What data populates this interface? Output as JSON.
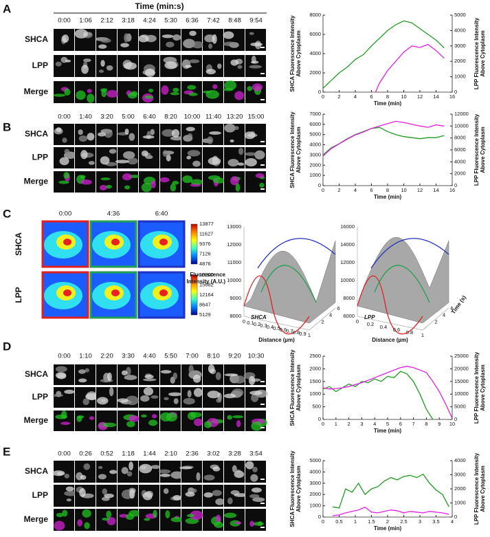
{
  "panels": [
    {
      "label": "A",
      "title": "Time (min:s)",
      "times": [
        "0:00",
        "1:06",
        "2:12",
        "3:18",
        "4:24",
        "5:30",
        "6:36",
        "7:42",
        "8:48",
        "9:54"
      ],
      "rows": [
        "SHCA",
        "LPP",
        "Merge"
      ],
      "chart": {
        "type": "line",
        "xlabel": "Time (min)",
        "ylabel": [
          "SHCA Fluorescence Intensity",
          "Above Cytoplasm"
        ],
        "y2label": [
          "LPP Fluorescence Intensity",
          "Above Cytoplasm"
        ],
        "xlim": [
          0,
          16
        ],
        "xticks": [
          0,
          2,
          4,
          6,
          8,
          10,
          12,
          14,
          16
        ],
        "ylim": [
          0,
          8000
        ],
        "yticks": [
          0,
          2000,
          4000,
          6000,
          8000
        ],
        "y2lim": [
          0,
          5000
        ],
        "y2ticks": [
          0,
          1000,
          2000,
          3000,
          4000,
          5000
        ],
        "series": [
          {
            "color": "#1f9a1f",
            "x": [
              0,
              1,
              2,
              3,
              4,
              5,
              6,
              7,
              8,
              9,
              10,
              11,
              12,
              13,
              14,
              15
            ],
            "values": [
              400,
              1200,
              2000,
              2600,
              3400,
              3900,
              4800,
              5600,
              6400,
              7000,
              7400,
              7200,
              6600,
              6000,
              5400,
              4600
            ]
          },
          {
            "color": "#e020e0",
            "axis": "y2",
            "x": [
              6.5,
              7,
              8,
              9,
              10,
              11,
              12,
              13,
              14,
              15
            ],
            "values": [
              0,
              600,
              1400,
              2000,
              2600,
              3000,
              2900,
              3100,
              2700,
              2200
            ]
          }
        ]
      }
    },
    {
      "label": "B",
      "times": [
        "0:00",
        "1:40",
        "3:20",
        "5:00",
        "6:40",
        "8:20",
        "10:00",
        "11:40",
        "13:20",
        "15:00"
      ],
      "rows": [
        "SHCA",
        "LPP",
        "Merge"
      ],
      "chart": {
        "type": "line",
        "xlabel": "Time (min)",
        "ylabel": [
          "SHCA Fluorescence Intensity",
          "Above Cytoplasm"
        ],
        "y2label": [
          "LPP Fluorescence Intensity",
          "Above Cytoplasm"
        ],
        "xlim": [
          0,
          16
        ],
        "xticks": [
          0,
          2,
          4,
          6,
          8,
          10,
          12,
          14,
          16
        ],
        "ylim": [
          0,
          7000
        ],
        "yticks": [
          0,
          1000,
          2000,
          3000,
          4000,
          5000,
          6000,
          7000
        ],
        "y2lim": [
          0,
          12000
        ],
        "y2ticks": [
          0,
          2000,
          4000,
          6000,
          8000,
          10000,
          12000
        ],
        "series": [
          {
            "color": "#1f9a1f",
            "x": [
              0,
              1,
              2,
              3,
              4,
              5,
              6,
              7,
              8,
              9,
              10,
              11,
              12,
              13,
              14,
              15
            ],
            "values": [
              3000,
              3700,
              4100,
              4600,
              5000,
              5300,
              5600,
              5700,
              5300,
              5000,
              4800,
              4700,
              4600,
              4700,
              4700,
              4900
            ]
          },
          {
            "color": "#e020e0",
            "axis": "y2",
            "x": [
              0,
              1,
              2,
              3,
              4,
              5,
              6,
              7,
              8,
              9,
              10,
              11,
              12,
              13,
              14,
              15
            ],
            "values": [
              5000,
              6200,
              7000,
              7800,
              8500,
              9000,
              9600,
              10000,
              10400,
              10800,
              10600,
              10300,
              10000,
              9800,
              10200,
              10000
            ]
          }
        ]
      }
    },
    {
      "label": "D",
      "times": [
        "0:00",
        "1:10",
        "2:20",
        "3:30",
        "4:40",
        "5:50",
        "7:00",
        "8:10",
        "9:20",
        "10:30"
      ],
      "rows": [
        "SHCA",
        "LPP",
        "Merge"
      ],
      "chart": {
        "type": "line",
        "xlabel": "Time (min)",
        "ylabel": [
          "SHCA Fluorescence Intensity",
          "Above Cytoplasm"
        ],
        "y2label": [
          "LPP Fluorescence Intensity",
          "Above Cytoplasm"
        ],
        "xlim": [
          0,
          10
        ],
        "xticks": [
          0,
          1,
          2,
          3,
          4,
          5,
          6,
          7,
          8,
          9,
          10
        ],
        "ylim": [
          0,
          2500
        ],
        "yticks": [
          0,
          500,
          1000,
          1500,
          2000,
          2500
        ],
        "y2lim": [
          0,
          25000
        ],
        "y2ticks": [
          0,
          5000,
          10000,
          15000,
          20000,
          25000
        ],
        "series": [
          {
            "color": "#1f9a1f",
            "x": [
              0,
              0.5,
              1,
              1.5,
              2,
              2.5,
              3,
              3.5,
              4,
              4.5,
              5,
              5.5,
              6,
              6.5,
              7,
              7.5,
              8,
              8.5
            ],
            "values": [
              1200,
              1300,
              1100,
              1250,
              1400,
              1300,
              1500,
              1450,
              1600,
              1500,
              1700,
              1650,
              1900,
              1800,
              1500,
              1000,
              400,
              0
            ]
          },
          {
            "color": "#e020e0",
            "axis": "y2",
            "x": [
              0,
              0.5,
              1,
              1.5,
              2,
              2.5,
              3,
              3.5,
              4,
              4.5,
              5,
              5.5,
              6,
              6.5,
              7,
              7.5,
              8,
              8.5,
              9,
              9.5,
              10
            ],
            "values": [
              12500,
              12000,
              12200,
              12500,
              13000,
              13800,
              14500,
              15500,
              16500,
              17500,
              18500,
              19500,
              20500,
              21000,
              20500,
              19500,
              18500,
              15000,
              11000,
              6000,
              500
            ]
          }
        ]
      }
    },
    {
      "label": "E",
      "times": [
        "0:00",
        "0:26",
        "0:52",
        "1:18",
        "1:44",
        "2:10",
        "2:36",
        "3:02",
        "3:28",
        "3:54"
      ],
      "rows": [
        "SHCA",
        "LPP",
        "Merge"
      ],
      "chart": {
        "type": "line",
        "xlabel": "Time (min)",
        "ylabel": [
          "SHCA Fluorescence Intensity",
          "Above Cytoplasm"
        ],
        "y2label": [
          "LPP Fluorescence Intensity",
          "Above Cytoplasm"
        ],
        "xlim": [
          0,
          4
        ],
        "xticks": [
          0,
          0.5,
          1,
          1.5,
          2,
          2.5,
          3,
          3.5,
          4
        ],
        "ylim": [
          0,
          5000
        ],
        "yticks": [
          0,
          1000,
          2000,
          3000,
          4000,
          5000
        ],
        "y2lim": [
          0,
          4000
        ],
        "y2ticks": [
          0,
          1000,
          2000,
          3000,
          4000
        ],
        "series": [
          {
            "color": "#1f9a1f",
            "x": [
              0.3,
              0.5,
              0.7,
              0.9,
              1.1,
              1.3,
              1.5,
              1.7,
              1.9,
              2.1,
              2.3,
              2.5,
              2.7,
              2.9,
              3.1,
              3.3,
              3.5,
              3.7,
              3.9
            ],
            "values": [
              900,
              800,
              2500,
              2200,
              3000,
              2000,
              2500,
              2700,
              3200,
              3500,
              3300,
              3600,
              3700,
              3500,
              3800,
              3000,
              2400,
              2000,
              900
            ]
          },
          {
            "color": "#e020e0",
            "axis": "y2",
            "x": [
              0.3,
              0.5,
              0.7,
              0.9,
              1.1,
              1.3,
              1.5,
              1.7,
              1.9,
              2.1,
              2.3,
              2.5,
              2.7,
              2.9,
              3.1,
              3.3,
              3.5,
              3.7,
              3.9
            ],
            "values": [
              100,
              150,
              300,
              400,
              500,
              700,
              350,
              300,
              400,
              500,
              450,
              300,
              400,
              350,
              300,
              400,
              350,
              300,
              200
            ]
          }
        ]
      }
    }
  ],
  "heatmap_panel": {
    "label": "C",
    "times": [
      "0:00",
      "4:36",
      "6:40"
    ],
    "rows": [
      "SHCA",
      "LPP"
    ],
    "colorbars": [
      [
        13877,
        11627,
        9376,
        7126,
        4876
      ],
      [
        19200,
        15682,
        12164,
        8647,
        5129
      ]
    ],
    "surfaces": [
      {
        "name": "SHCA",
        "zlabel": [
          "Fluorescence",
          "Intensity (A.U.)"
        ],
        "zticks": [
          8000,
          9000,
          10000,
          11000,
          12000,
          13000
        ],
        "xlabel": "Distance (µm)",
        "xticks": [
          0,
          0.1,
          0.2,
          0.3,
          0.4,
          0.5,
          0.6,
          0.7,
          0.8,
          0.9,
          1
        ],
        "yticks": [
          2,
          4,
          6
        ]
      },
      {
        "name": "LPP",
        "zticks": [
          6000,
          8000,
          10000,
          12000,
          14000,
          16000
        ],
        "xlabel": "Distance (µm)",
        "xticks": [
          0,
          0.2,
          0.4,
          0.6,
          0.8,
          1
        ],
        "yticks": [
          2,
          4,
          6
        ],
        "ylabel": "Time (s)"
      }
    ]
  }
}
